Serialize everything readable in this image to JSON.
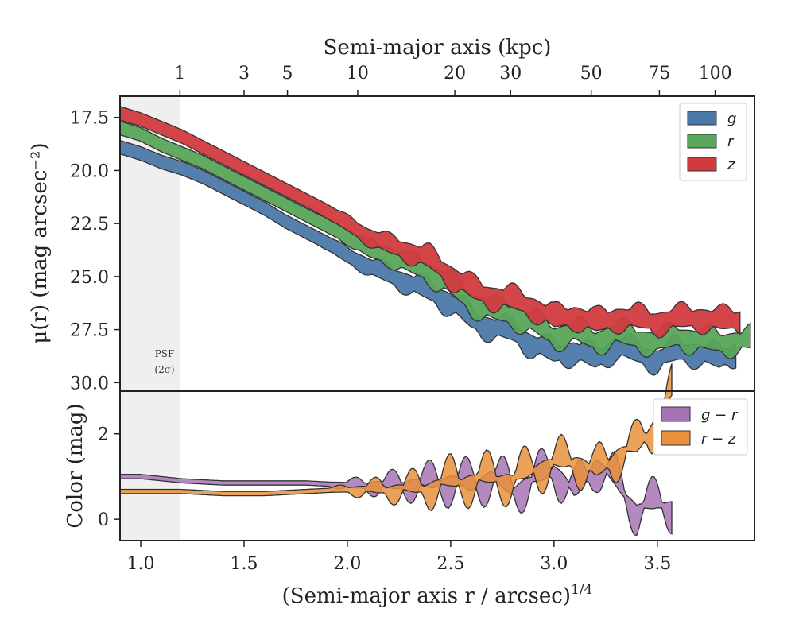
{
  "chart_data": [
    {
      "type": "area",
      "panel": "surface-brightness",
      "top_xlabel": "Semi-major axis (kpc)",
      "top_ticks": [
        "1",
        "3",
        "5",
        "10",
        "20",
        "30",
        "50",
        "75",
        "100"
      ],
      "top_tick_positions": [
        1.19,
        1.5,
        1.71,
        2.05,
        2.52,
        2.79,
        3.18,
        3.51,
        3.78
      ],
      "ylabel": "μ(r) (mag arcsec⁻²)",
      "ylim": [
        30.4,
        16.5
      ],
      "yticks": [
        17.5,
        20.0,
        22.5,
        25.0,
        27.5,
        30.0
      ],
      "ytick_labels": [
        "17.5",
        "20.0",
        "22.5",
        "25.0",
        "27.5",
        "30.0"
      ],
      "xlim": [
        0.9,
        3.97
      ],
      "psf_limit": 1.19,
      "psf_label": [
        "PSF",
        "(2σ)"
      ],
      "legend_position": "top-right",
      "series": [
        {
          "name": "g",
          "color": "#4c78a8",
          "x": [
            0.9,
            1.0,
            1.1,
            1.2,
            1.3,
            1.4,
            1.5,
            1.6,
            1.7,
            1.8,
            1.9,
            2.0,
            2.1,
            2.2,
            2.3,
            2.4,
            2.5,
            2.6,
            2.7,
            2.8,
            2.9,
            3.0,
            3.1,
            3.2,
            3.3,
            3.4,
            3.5,
            3.6,
            3.7,
            3.8,
            3.88
          ],
          "y": [
            18.9,
            19.2,
            19.6,
            19.9,
            20.3,
            20.8,
            21.3,
            21.8,
            22.4,
            22.9,
            23.4,
            24.0,
            24.5,
            24.9,
            25.3,
            25.7,
            26.2,
            27.0,
            27.4,
            27.6,
            28.2,
            28.6,
            28.5,
            28.9,
            28.3,
            28.6,
            28.9,
            28.5,
            28.6,
            28.9,
            28.5
          ]
        },
        {
          "name": "r",
          "color": "#59a55a",
          "x": [
            0.9,
            1.0,
            1.1,
            1.2,
            1.3,
            1.4,
            1.5,
            1.6,
            1.7,
            1.8,
            1.9,
            2.0,
            2.1,
            2.2,
            2.3,
            2.4,
            2.5,
            2.6,
            2.7,
            2.8,
            2.9,
            3.0,
            3.1,
            3.2,
            3.3,
            3.4,
            3.5,
            3.6,
            3.7,
            3.8,
            3.95
          ],
          "y": [
            18.0,
            18.3,
            18.8,
            19.2,
            19.6,
            20.1,
            20.6,
            21.1,
            21.6,
            22.1,
            22.6,
            23.1,
            23.7,
            24.0,
            24.4,
            24.8,
            25.4,
            26.2,
            26.6,
            26.8,
            27.2,
            27.8,
            27.6,
            28.0,
            27.7,
            27.9,
            28.1,
            27.8,
            28.0,
            28.1,
            28.0
          ]
        },
        {
          "name": "z",
          "color": "#d13b3f",
          "x": [
            0.9,
            1.0,
            1.1,
            1.2,
            1.3,
            1.4,
            1.5,
            1.6,
            1.7,
            1.8,
            1.9,
            2.0,
            2.1,
            2.2,
            2.3,
            2.4,
            2.5,
            2.6,
            2.7,
            2.8,
            2.9,
            3.0,
            3.1,
            3.2,
            3.3,
            3.4,
            3.5,
            3.6,
            3.7,
            3.8,
            3.9
          ],
          "y": [
            17.3,
            17.6,
            18.0,
            18.4,
            18.9,
            19.4,
            19.9,
            20.4,
            20.9,
            21.4,
            21.9,
            22.5,
            23.1,
            23.5,
            23.8,
            24.2,
            24.9,
            25.6,
            25.9,
            26.1,
            26.4,
            27.0,
            26.8,
            27.2,
            26.9,
            27.0,
            27.1,
            27.0,
            26.9,
            27.1,
            27.0
          ]
        }
      ]
    },
    {
      "type": "area",
      "panel": "color",
      "ylabel": "Color (mag)",
      "xlabel": "(Semi-major axis r / arcsec)",
      "xlabel_sup": "1/4",
      "xlim": [
        0.9,
        3.97
      ],
      "ylim": [
        -0.5,
        3.0
      ],
      "yticks": [
        0,
        2
      ],
      "ytick_labels": [
        "0",
        "2"
      ],
      "xticks": [
        1.0,
        1.5,
        2.0,
        2.5,
        3.0,
        3.5
      ],
      "xtick_labels": [
        "1.0",
        "1.5",
        "2.0",
        "2.5",
        "3.0",
        "3.5"
      ],
      "legend_position": "top-right",
      "series": [
        {
          "name": "g − r",
          "color": "#a674b5",
          "x": [
            0.9,
            1.0,
            1.2,
            1.4,
            1.6,
            1.8,
            2.0,
            2.2,
            2.4,
            2.5,
            2.6,
            2.7,
            2.8,
            2.9,
            3.0,
            3.1,
            3.2,
            3.3,
            3.4,
            3.5,
            3.57
          ],
          "y": [
            1.0,
            1.0,
            0.9,
            0.85,
            0.85,
            0.85,
            0.8,
            0.8,
            0.85,
            0.9,
            0.8,
            1.0,
            0.7,
            0.9,
            1.2,
            0.6,
            1.3,
            0.9,
            0.2,
            0.4,
            0.3
          ]
        },
        {
          "name": "r − z",
          "color": "#e8913a",
          "x": [
            0.9,
            1.0,
            1.2,
            1.4,
            1.6,
            1.8,
            2.0,
            2.2,
            2.4,
            2.5,
            2.6,
            2.7,
            2.8,
            2.9,
            3.0,
            3.1,
            3.2,
            3.3,
            3.4,
            3.5,
            3.57
          ],
          "y": [
            0.65,
            0.65,
            0.65,
            0.6,
            0.6,
            0.65,
            0.7,
            0.7,
            0.75,
            0.9,
            0.9,
            1.0,
            0.9,
            1.2,
            1.3,
            1.4,
            1.1,
            1.5,
            1.7,
            2.3,
            3.0
          ]
        }
      ]
    }
  ]
}
